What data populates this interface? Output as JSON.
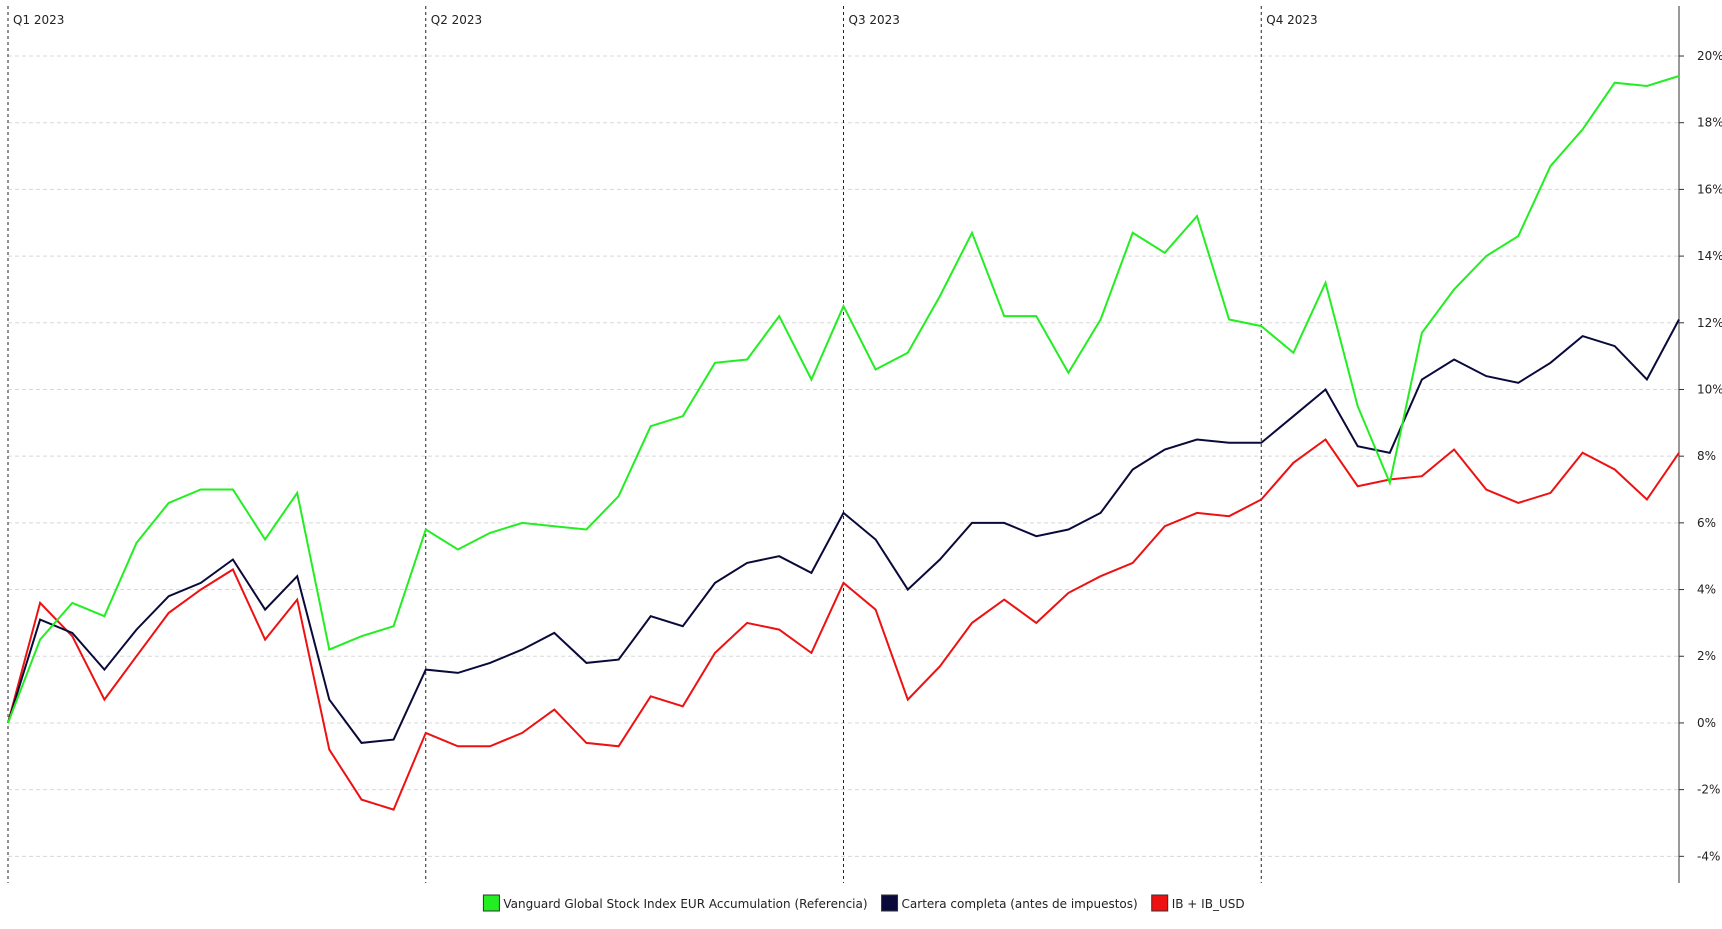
{
  "chart_data": {
    "type": "line",
    "title": "",
    "xlabel": "",
    "ylabel": "",
    "ylim": [
      -4.8,
      21.5
    ],
    "yticks": [
      -4,
      -2,
      0,
      2,
      4,
      6,
      8,
      10,
      12,
      14,
      16,
      18,
      20
    ],
    "ytick_labels": [
      "-4%",
      "-2%",
      "0%",
      "2%",
      "4%",
      "6%",
      "8%",
      "10%",
      "12%",
      "14%",
      "16%",
      "18%",
      "20%"
    ],
    "grid": true,
    "legend_position": "bottom-center",
    "quarters": [
      {
        "label": "Q1 2023",
        "start_index": 0
      },
      {
        "label": "Q2 2023",
        "start_index": 13
      },
      {
        "label": "Q3 2023",
        "start_index": 26
      },
      {
        "label": "Q4 2023",
        "start_index": 39
      }
    ],
    "num_points": 53,
    "series": [
      {
        "name": "Vanguard Global Stock Index EUR Accumulation (Referencia)",
        "color": "#22ee22",
        "values": [
          0.0,
          2.5,
          3.6,
          3.2,
          5.4,
          6.6,
          7.0,
          7.0,
          5.5,
          6.9,
          2.2,
          2.6,
          2.9,
          5.8,
          5.2,
          5.7,
          6.0,
          5.9,
          5.8,
          6.8,
          8.9,
          9.2,
          10.8,
          10.9,
          12.2,
          10.3,
          12.5,
          10.6,
          11.1,
          12.8,
          14.7,
          12.2,
          12.2,
          10.5,
          12.1,
          14.7,
          14.1,
          15.2,
          12.1,
          11.9,
          11.1,
          13.2,
          9.5,
          7.2,
          11.7,
          13.0,
          14.0,
          14.6,
          16.7,
          17.8,
          19.2,
          19.1,
          19.4
        ]
      },
      {
        "name": "Cartera completa (antes de impuestos)",
        "color": "#0a0a3a",
        "values": [
          0.0,
          3.1,
          2.7,
          1.6,
          2.8,
          3.8,
          4.2,
          4.9,
          3.4,
          4.4,
          0.7,
          -0.6,
          -0.5,
          1.6,
          1.5,
          1.8,
          2.2,
          2.7,
          1.8,
          1.9,
          3.2,
          2.9,
          4.2,
          4.8,
          5.0,
          4.5,
          6.3,
          5.5,
          4.0,
          4.9,
          6.0,
          6.0,
          5.6,
          5.8,
          6.3,
          7.6,
          8.2,
          8.5,
          8.4,
          8.4,
          9.2,
          10.0,
          8.3,
          8.1,
          10.3,
          10.9,
          10.4,
          10.2,
          10.8,
          11.6,
          11.3,
          10.3,
          12.1
        ]
      },
      {
        "name": "IB + IB_USD",
        "color": "#ee1111",
        "values": [
          0.0,
          3.6,
          2.6,
          0.7,
          2.0,
          3.3,
          4.0,
          4.6,
          2.5,
          3.7,
          -0.8,
          -2.3,
          -2.6,
          -0.3,
          -0.7,
          -0.7,
          -0.3,
          0.4,
          -0.6,
          -0.7,
          0.8,
          0.5,
          2.1,
          3.0,
          2.8,
          2.1,
          4.2,
          3.4,
          0.7,
          1.7,
          3.0,
          3.7,
          3.0,
          3.9,
          4.4,
          4.8,
          5.9,
          6.3,
          6.2,
          6.7,
          7.8,
          8.5,
          7.1,
          7.3,
          7.4,
          8.2,
          7.0,
          6.6,
          6.9,
          8.1,
          7.6,
          6.7,
          8.1
        ]
      }
    ]
  }
}
